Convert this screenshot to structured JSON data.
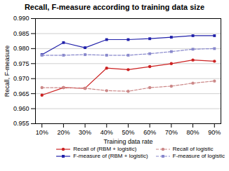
{
  "chart_data": {
    "type": "line",
    "title": "Recall, F-measure according to training data size",
    "xlabel": "Training data rate",
    "ylabel": "Recall, F-measure",
    "x": [
      10,
      20,
      30,
      40,
      50,
      60,
      70,
      80,
      90
    ],
    "xlim": [
      7,
      93
    ],
    "xticks": [
      {
        "value": 10,
        "label": "10%"
      },
      {
        "value": 20,
        "label": "20%"
      },
      {
        "value": 30,
        "label": "30%"
      },
      {
        "value": 40,
        "label": "40%"
      },
      {
        "value": 50,
        "label": "50%"
      },
      {
        "value": 60,
        "label": "60%"
      },
      {
        "value": 70,
        "label": "70%"
      },
      {
        "value": 80,
        "label": "80%"
      },
      {
        "value": 90,
        "label": "90%"
      }
    ],
    "ylim": [
      0.955,
      0.99
    ],
    "yticks": [
      0.955,
      {
        "value": 0.96,
        "label": "0.960"
      },
      0.965,
      {
        "value": 0.97,
        "label": "0.970"
      },
      0.975,
      {
        "value": 0.98,
        "label": "0.980"
      },
      0.985,
      {
        "value": 0.99,
        "label": "0.990"
      }
    ],
    "grid": "y",
    "legend": "lower right",
    "series": [
      {
        "name": "Recall of (RBM + logistic)",
        "color": "#cc2222",
        "marker": "circle",
        "line_style": "solid",
        "values": [
          0.9645,
          0.967,
          0.9668,
          0.9735,
          0.973,
          0.974,
          0.975,
          0.9762,
          0.9758
        ]
      },
      {
        "name": "Recall of logistic",
        "color": "#cc8888",
        "marker": "circle",
        "line_style": "dashed",
        "values": [
          0.967,
          0.967,
          0.9668,
          0.966,
          0.9658,
          0.967,
          0.9675,
          0.9685,
          0.9692
        ]
      },
      {
        "name": "F-measure of (RBM + logistic)",
        "color": "#2222aa",
        "marker": "square",
        "line_style": "solid",
        "values": [
          0.978,
          0.982,
          0.9803,
          0.983,
          0.983,
          0.9833,
          0.9838,
          0.9843,
          0.9843
        ]
      },
      {
        "name": "F-measure of logistic",
        "color": "#8888cc",
        "marker": "square",
        "line_style": "dashed",
        "values": [
          0.9778,
          0.9778,
          0.978,
          0.9778,
          0.9778,
          0.9783,
          0.979,
          0.9798,
          0.98
        ]
      }
    ]
  }
}
